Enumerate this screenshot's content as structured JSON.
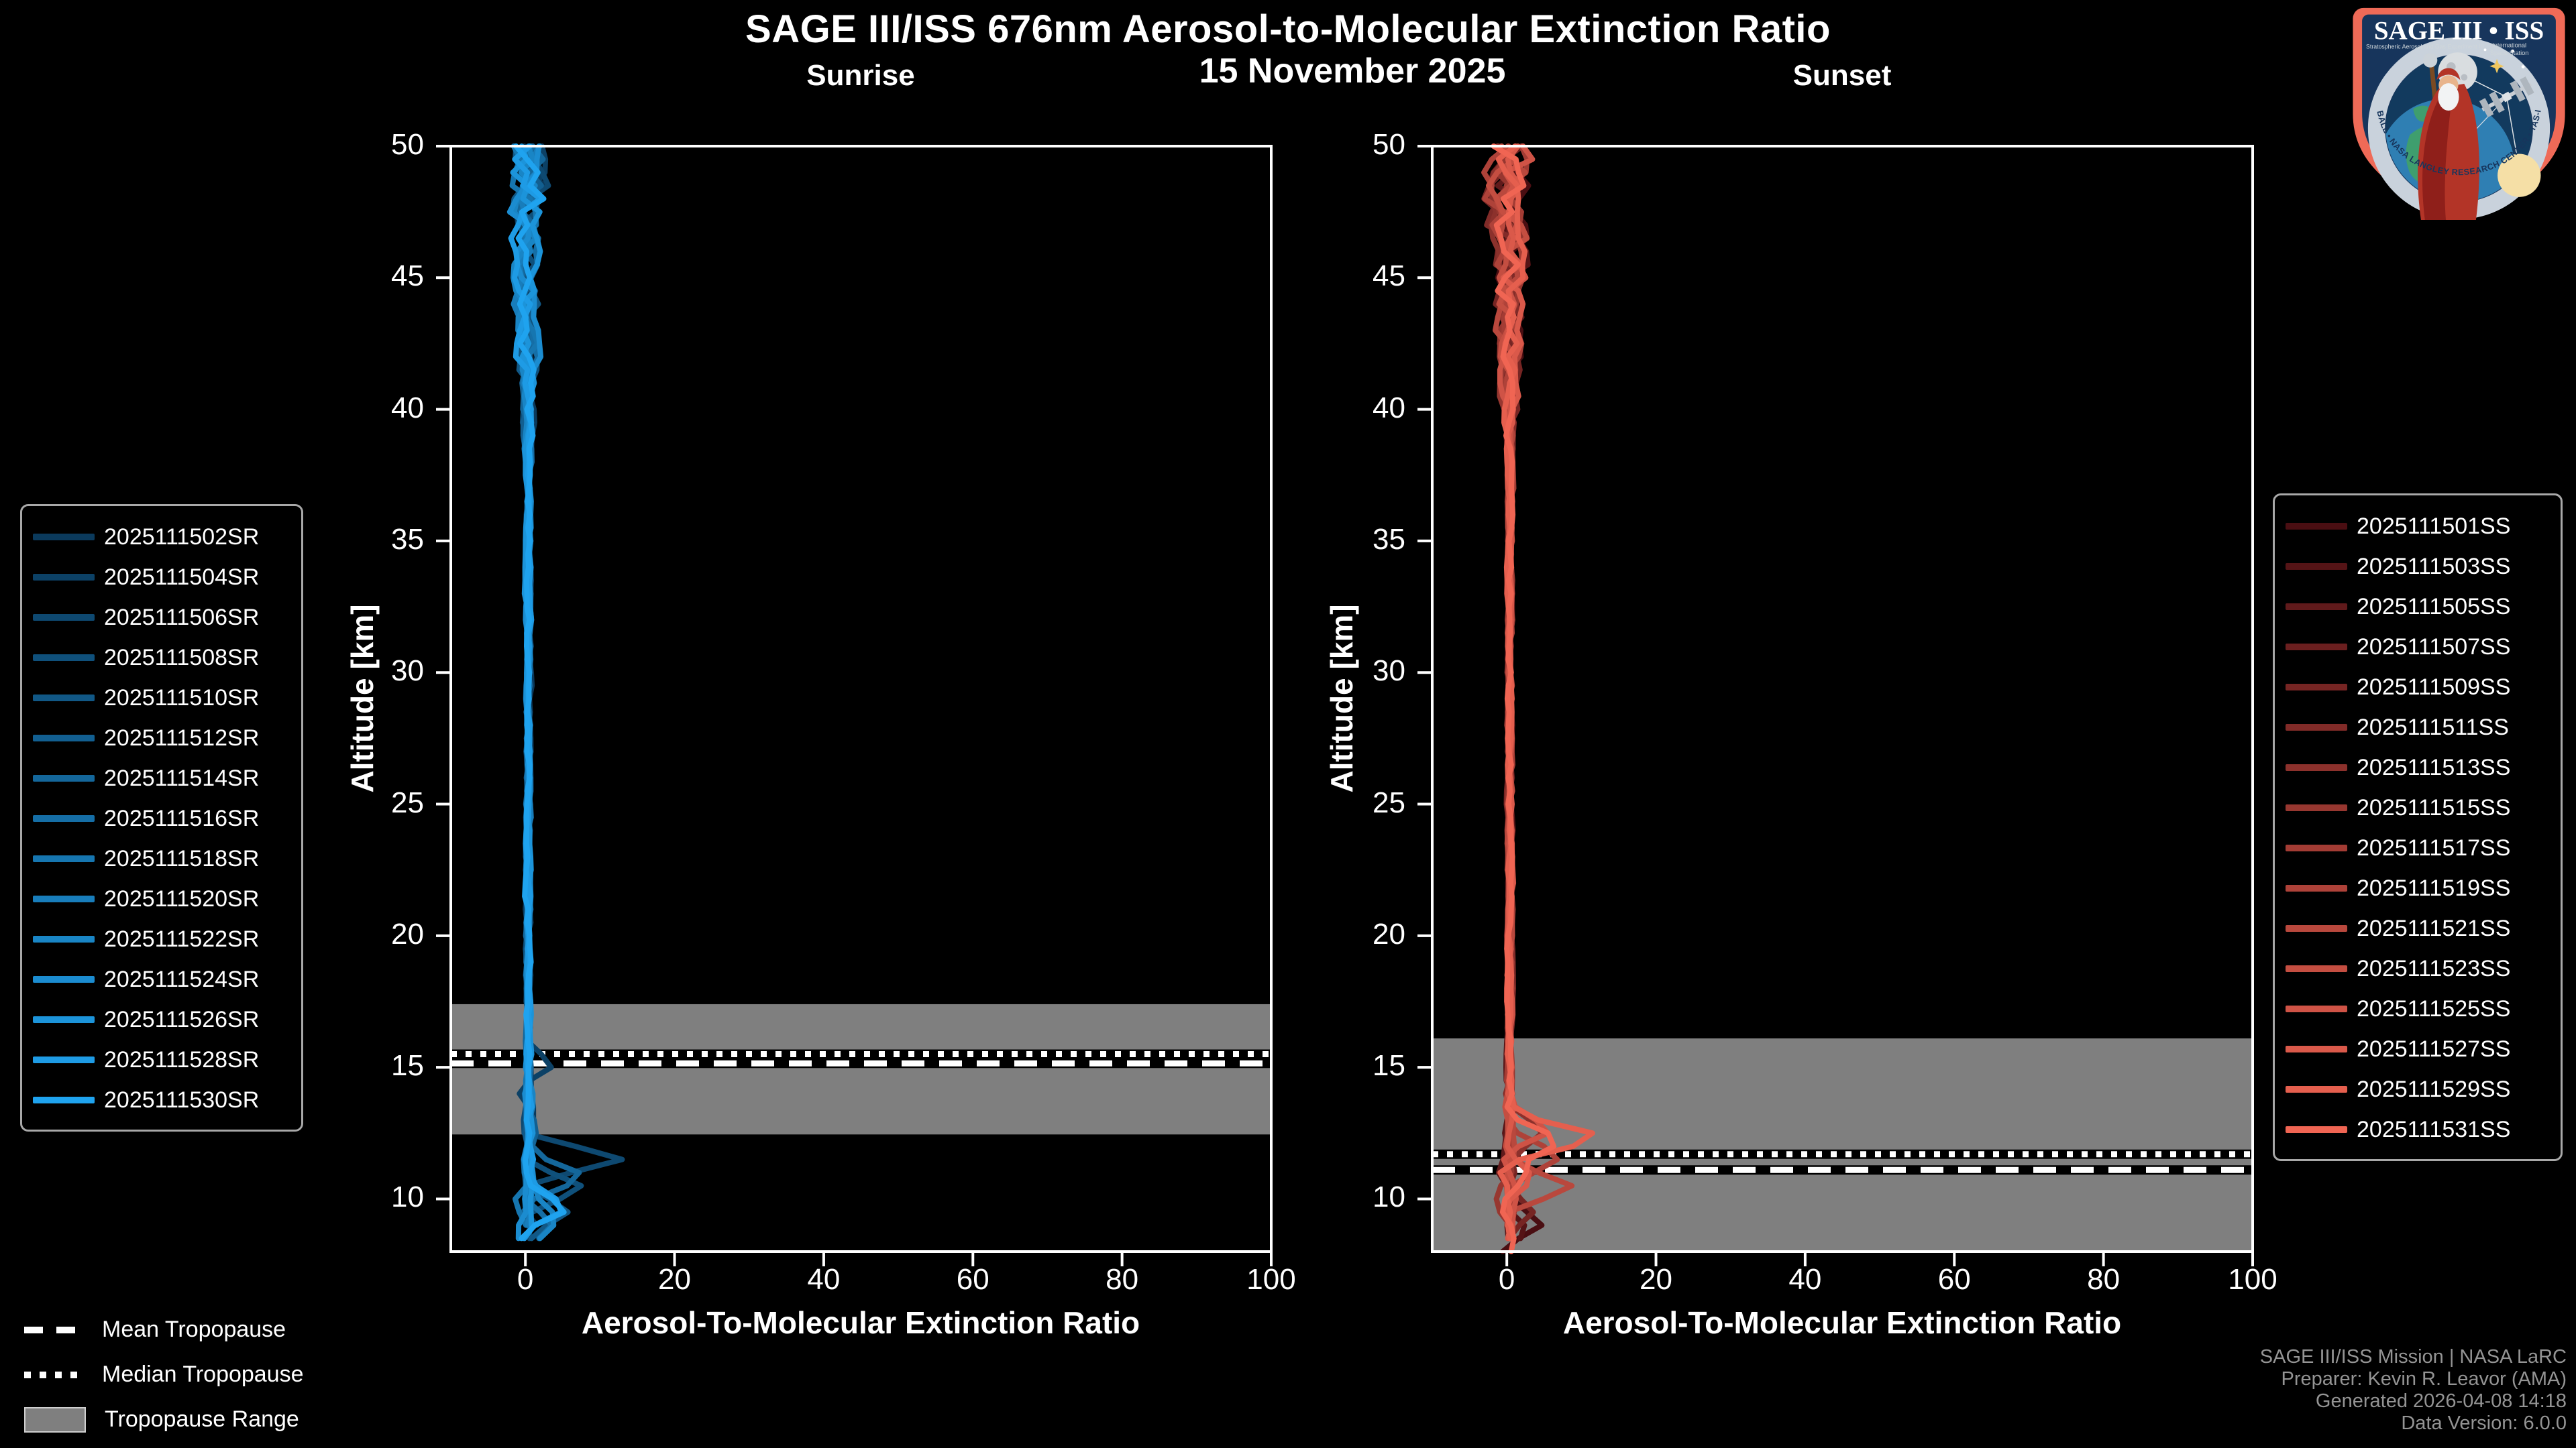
{
  "header": {
    "title": "SAGE III/ISS 676nm Aerosol-to-Molecular Extinction Ratio",
    "date": "15 November 2025"
  },
  "colors": {
    "background": "#000000",
    "axis": "#ffffff",
    "tropopause_band": "#7f7f7f",
    "tropopause_line": "#ffffff",
    "legend_border": "#a8a8a8",
    "attribution_text": "#949494"
  },
  "tropopause_legend": [
    {
      "style": "dashed",
      "label": "Mean Tropopause"
    },
    {
      "style": "dotted",
      "label": "Median Tropopause"
    },
    {
      "style": "band",
      "label": "Tropopause Range"
    }
  ],
  "attribution": {
    "lines": [
      "SAGE III/ISS Mission | NASA LaRC",
      "Preparer: Kevin R. Leavor (AMA)",
      "Generated 2026-04-08 14:18",
      "Data Version: 6.0.0"
    ]
  },
  "logo": {
    "title": "SAGE III • ISS",
    "subtitle_left": "Stratospheric Aerosol and Gas Experiment III",
    "subtitle_right": [
      "International",
      "Space Station"
    ],
    "ring_text": "BALL • NASA LANGLEY RESEARCH CENTER • TAS-I • ESA",
    "border_color": "#EF6A57",
    "field_color": "#17355C",
    "ring_color": "#C9D2DC"
  },
  "chart_data": [
    {
      "type": "line",
      "title": "Sunrise",
      "xlabel": "Aerosol-To-Molecular Extinction Ratio",
      "ylabel": "Altitude [km]",
      "xlim": [
        -10,
        100
      ],
      "ylim": [
        8,
        50
      ],
      "xticks": [
        0,
        20,
        40,
        60,
        80,
        100
      ],
      "yticks": [
        10,
        15,
        20,
        25,
        30,
        35,
        40,
        45,
        50
      ],
      "grid": false,
      "legend_position": "outside-left",
      "tropopause": {
        "mean_km": 15.15,
        "median_km": 15.5,
        "range_km": [
          12.45,
          17.4
        ]
      },
      "profile_defaults": {
        "alt_top": 50,
        "alt_step": 0.5,
        "base": 0.4,
        "noise_mid": 0.3,
        "noise_top": 2.0
      },
      "series": [
        {
          "label": "2025111502SR",
          "color": "#0B3A5C",
          "seed": 502,
          "alt_end": 8.6,
          "spikes": [
            [
              9.4,
              -1.8
            ],
            [
              8.9,
              2.6
            ]
          ]
        },
        {
          "label": "2025111504SR",
          "color": "#0C4166",
          "seed": 504,
          "alt_end": 9.0,
          "spikes": [
            [
              15.0,
              3.6
            ],
            [
              14.3,
              -1.7
            ]
          ]
        },
        {
          "label": "2025111506SR",
          "color": "#0E4971",
          "seed": 506,
          "alt_end": 8.4,
          "spikes": [
            [
              11.5,
              12.6
            ],
            [
              10.9,
              -1.2
            ]
          ]
        },
        {
          "label": "2025111508SR",
          "color": "#0F507B",
          "seed": 508,
          "alt_end": 9.2,
          "spikes": [
            [
              10.4,
              7.4
            ]
          ]
        },
        {
          "label": "2025111510SR",
          "color": "#115886",
          "seed": 510,
          "alt_end": 8.4,
          "spikes": [
            [
              10.2,
              -1.6
            ],
            [
              9.6,
              6.4
            ]
          ]
        },
        {
          "label": "2025111512SR",
          "color": "#125F91",
          "seed": 512,
          "alt_end": 8.8,
          "spikes": [
            [
              13.4,
              -1.8
            ],
            [
              12.9,
              2.2
            ]
          ]
        },
        {
          "label": "2025111514SR",
          "color": "#14679B",
          "seed": 514,
          "alt_end": 9.4,
          "spikes": [
            [
              10.8,
              8.0
            ],
            [
              9.9,
              -1.1
            ]
          ]
        },
        {
          "label": "2025111516SR",
          "color": "#156EA6",
          "seed": 516,
          "alt_end": 8.4,
          "spikes": [
            [
              9.0,
              3.1
            ]
          ]
        },
        {
          "label": "2025111518SR",
          "color": "#1676B0",
          "seed": 518,
          "alt_end": 8.6,
          "spikes": [
            [
              9.8,
              -2.0
            ]
          ]
        },
        {
          "label": "2025111520SR",
          "color": "#187DBB",
          "seed": 520,
          "alt_end": 9.0,
          "spikes": []
        },
        {
          "label": "2025111522SR",
          "color": "#1985C5",
          "seed": 522,
          "alt_end": 8.5,
          "spikes": [
            [
              9.3,
              4.2
            ]
          ]
        },
        {
          "label": "2025111524SR",
          "color": "#1B8CD0",
          "seed": 524,
          "alt_end": 8.4,
          "spikes": [
            [
              8.8,
              -1.6
            ]
          ]
        },
        {
          "label": "2025111526SR",
          "color": "#1C94DA",
          "seed": 526,
          "alt_end": 8.6,
          "spikes": []
        },
        {
          "label": "2025111528SR",
          "color": "#1E9BE5",
          "seed": 528,
          "alt_end": 8.4,
          "spikes": [
            [
              9.7,
              5.4
            ],
            [
              8.7,
              -1.3
            ]
          ]
        },
        {
          "label": "2025111530SR",
          "color": "#1FA3EF",
          "seed": 530,
          "alt_end": 8.3,
          "spikes": [
            [
              9.6,
              5.0
            ],
            [
              8.8,
              -1.1
            ]
          ]
        }
      ]
    },
    {
      "type": "line",
      "title": "Sunset",
      "xlabel": "Aerosol-To-Molecular Extinction Ratio",
      "ylabel": "Altitude [km]",
      "xlim": [
        -10,
        100
      ],
      "ylim": [
        8,
        50
      ],
      "xticks": [
        0,
        20,
        40,
        60,
        80,
        100
      ],
      "yticks": [
        10,
        15,
        20,
        25,
        30,
        35,
        40,
        45,
        50
      ],
      "grid": false,
      "legend_position": "outside-right",
      "tropopause": {
        "mean_km": 11.1,
        "median_km": 11.7,
        "range_km": [
          8.0,
          16.1
        ]
      },
      "profile_defaults": {
        "alt_top": 50,
        "alt_step": 0.5,
        "base": 0.4,
        "noise_mid": 0.3,
        "noise_top": 2.3
      },
      "series": [
        {
          "label": "2025111501SS",
          "color": "#4A0E12",
          "seed": 501,
          "alt_end": 8.0,
          "spikes": [
            [
              9.0,
              4.4
            ],
            [
              8.3,
              -1.2
            ]
          ]
        },
        {
          "label": "2025111503SS",
          "color": "#551416",
          "seed": 503,
          "alt_end": 8.2,
          "spikes": [
            [
              8.8,
              2.6
            ]
          ]
        },
        {
          "label": "2025111505SS",
          "color": "#601A1B",
          "seed": 505,
          "alt_end": 8.5,
          "spikes": [
            [
              11.0,
              -2.0
            ]
          ]
        },
        {
          "label": "2025111507SS",
          "color": "#6B1F1F",
          "seed": 507,
          "alt_end": 9.0,
          "spikes": []
        },
        {
          "label": "2025111509SS",
          "color": "#762523",
          "seed": 509,
          "alt_end": 8.3,
          "spikes": [
            [
              9.5,
              3.0
            ]
          ]
        },
        {
          "label": "2025111511SS",
          "color": "#812B28",
          "seed": 511,
          "alt_end": 8.6,
          "spikes": []
        },
        {
          "label": "2025111513SS",
          "color": "#8C312C",
          "seed": 513,
          "alt_end": 9.2,
          "spikes": [
            [
              12.6,
              5.4
            ]
          ]
        },
        {
          "label": "2025111515SS",
          "color": "#973730",
          "seed": 515,
          "alt_end": 8.2,
          "spikes": [
            [
              10.0,
              -1.6
            ]
          ]
        },
        {
          "label": "2025111517SS",
          "color": "#A33C34",
          "seed": 517,
          "alt_end": 8.8,
          "spikes": []
        },
        {
          "label": "2025111519SS",
          "color": "#AE4239",
          "seed": 519,
          "alt_end": 8.4,
          "spikes": [
            [
              11.6,
              7.4
            ]
          ]
        },
        {
          "label": "2025111521SS",
          "color": "#B9483D",
          "seed": 521,
          "alt_end": 8.6,
          "spikes": [
            [
              10.4,
              9.6
            ],
            [
              9.6,
              -1.5
            ]
          ]
        },
        {
          "label": "2025111523SS",
          "color": "#C44E41",
          "seed": 523,
          "alt_end": 9.0,
          "spikes": []
        },
        {
          "label": "2025111525SS",
          "color": "#CF5346",
          "seed": 525,
          "alt_end": 8.3,
          "spikes": [
            [
              12.6,
              6.0
            ],
            [
              11.8,
              -1.6
            ]
          ]
        },
        {
          "label": "2025111527SS",
          "color": "#DA594A",
          "seed": 527,
          "alt_end": 8.5,
          "spikes": [
            [
              10.9,
              3.4
            ]
          ]
        },
        {
          "label": "2025111529SS",
          "color": "#E55F4E",
          "seed": 529,
          "alt_end": 8.2,
          "spikes": [
            [
              12.3,
              13.4
            ],
            [
              11.4,
              -2.0
            ]
          ]
        },
        {
          "label": "2025111531SS",
          "color": "#F06553",
          "seed": 531,
          "alt_end": 8.0,
          "spikes": [
            [
              12.2,
              8.0
            ],
            [
              10.8,
              2.6
            ],
            [
              9.8,
              -1.6
            ]
          ]
        }
      ]
    }
  ]
}
